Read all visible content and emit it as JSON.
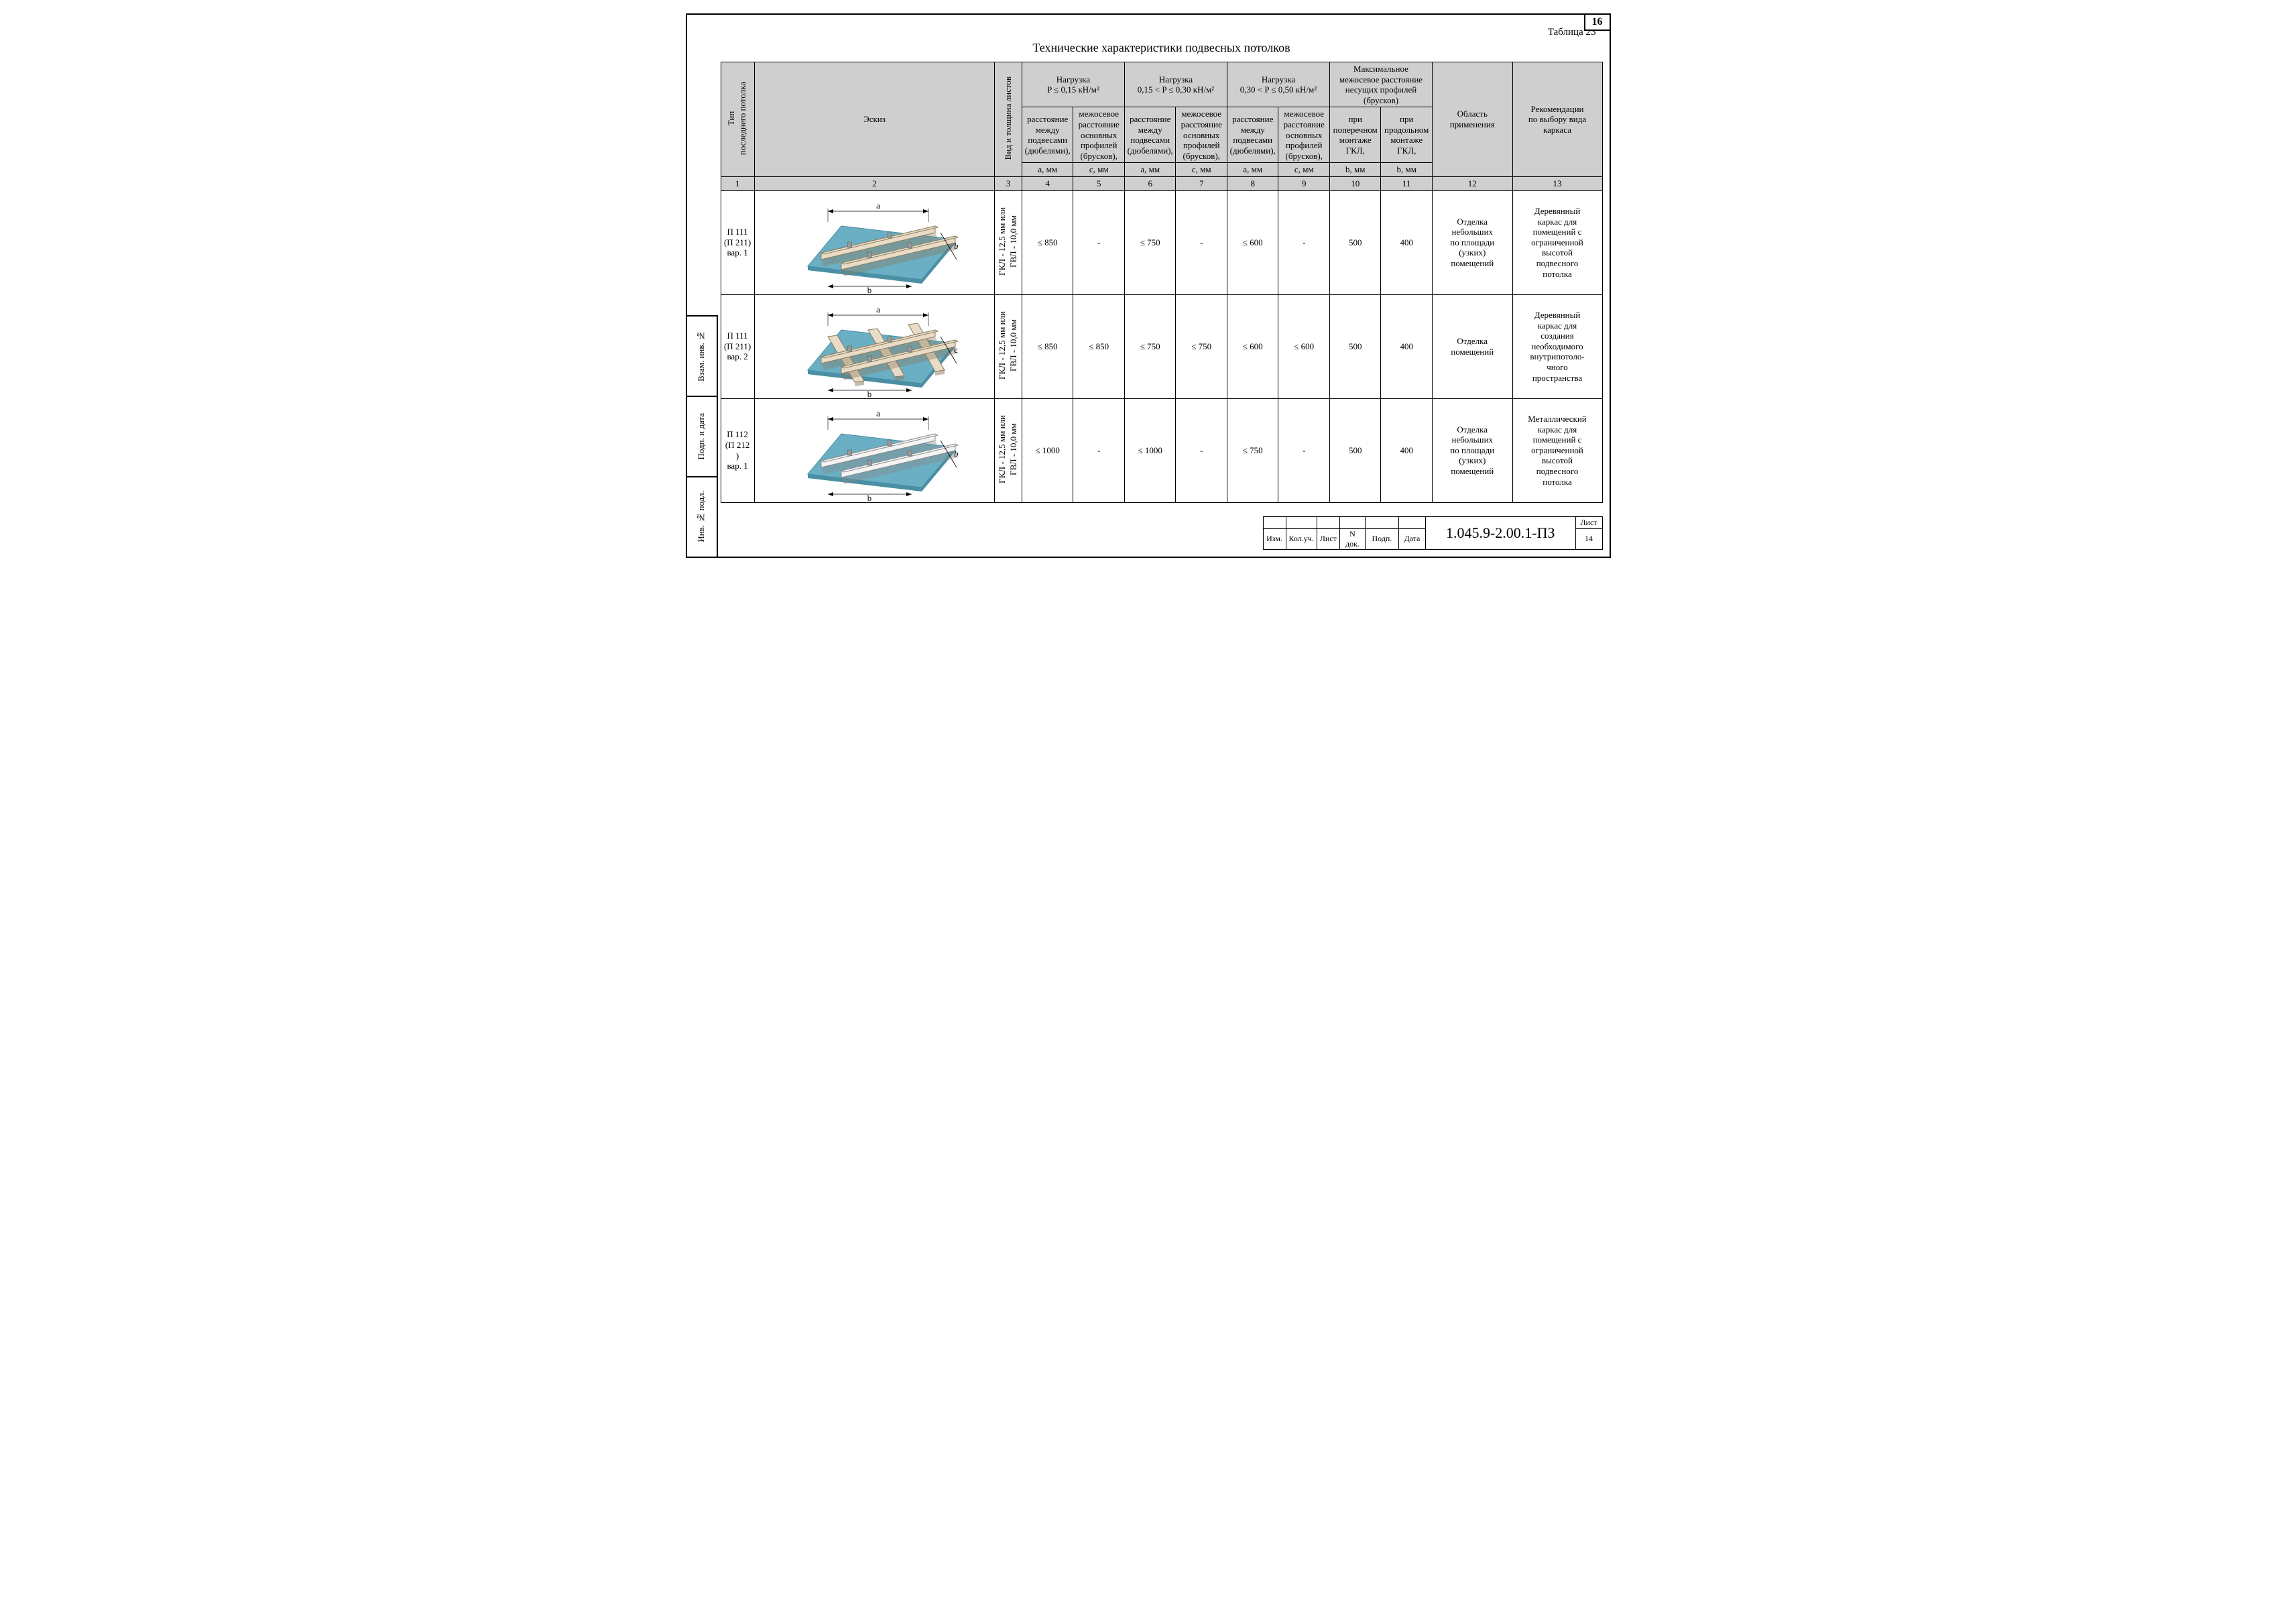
{
  "page_number_top": "16",
  "table_label": "Таблица 23",
  "title": "Технические характеристики подвесных потолков",
  "header": {
    "col1": "Тип\nпоследнего потолка",
    "col2": "Эскиз",
    "col3": "Вид и толщина листов",
    "load_groups": [
      "Нагрузка\nP ≤ 0,15 кН/м²",
      "Нагрузка\n0,15 < P ≤ 0,30 кН/м²",
      "Нагрузка\n0,30 < P ≤ 0,50 кН/м²"
    ],
    "max_group": "Максимальное\nмежосевое расстояние\nнесущих профилей\n(брусков)",
    "sub_a": "расстояние\nмежду\nподвесами\n(дюбелями),",
    "sub_c": "межосевое\nрасстояние\nосновных\nпрофилей\n(брусков),",
    "sub_b1": "при\nпоперечном\nмонтаже\nГКЛ,",
    "sub_b2": "при\nпродольном\nмонтаже\nГКЛ,",
    "unit_a": "a, мм",
    "unit_c": "c, мм",
    "unit_b": "b, мм",
    "col12": "Область\nприменения",
    "col13": "Рекомендации\nпо выбору вида\nкаркаса"
  },
  "colnums": [
    "1",
    "2",
    "3",
    "4",
    "5",
    "6",
    "7",
    "8",
    "9",
    "10",
    "11",
    "12",
    "13"
  ],
  "sheet_label": "ГКЛ - 12,5 мм или\nГВЛ - 10,0 мм",
  "rows": [
    {
      "type": "П 111\n(П 211)\nвар. 1",
      "values": [
        "≤ 850",
        "-",
        "≤ 750",
        "-",
        "≤ 600",
        "-",
        "500",
        "400"
      ],
      "area": "Отделка\nнебольших\nпо площади\n(узких)\nпомещений",
      "rec": "Деревянный\nкаркас для\nпомещений с\nограниченной\nвысотой\nподвесного\nпотолка",
      "sketch": {
        "second_layer": false,
        "beams": "wood",
        "label_b": true,
        "label_c": false
      }
    },
    {
      "type": "П 111\n(П 211)\nвар. 2",
      "values": [
        "≤ 850",
        "≤ 850",
        "≤ 750",
        "≤ 750",
        "≤ 600",
        "≤ 600",
        "500",
        "400"
      ],
      "area": "Отделка\nпомещений",
      "rec": "Деревянный\nкаркас для\nсоздания\nнеобходимого\nвнутрипотоло-\nчного\nпространства",
      "sketch": {
        "second_layer": true,
        "beams": "wood",
        "label_b": true,
        "label_c": true
      }
    },
    {
      "type": "П 112\n(П 212 )\nвар. 1",
      "values": [
        "≤ 1000",
        "-",
        "≤ 1000",
        "-",
        "≤ 750",
        "-",
        "500",
        "400"
      ],
      "area": "Отделка\nнебольших\nпо площади\n(узких)\nпомещений",
      "rec": "Металлический\nкаркас для\nпомещений с\nограниченной\nвысотой\nподвесного\nпотолка",
      "sketch": {
        "second_layer": false,
        "beams": "metal",
        "label_b": true,
        "label_c": false
      }
    }
  ],
  "side_stamp": [
    "Взам. инв. №",
    "Подп. и дата",
    "Инв. № подл."
  ],
  "title_block": {
    "small_cols": [
      "Изм.",
      "Кол.уч.",
      "Лист",
      "N док.",
      "Подп.",
      "Дата"
    ],
    "doc_code": "1.045.9-2.00.1-ПЗ",
    "sheet_word": "Лист",
    "sheet_num": "14"
  },
  "colors": {
    "panel": "#6aafc4",
    "panel_edge": "#4a8fa4",
    "wood_fill": "#e8dcc7",
    "wood_stroke": "#8a7a5e",
    "metal_fill": "#f4f4f4",
    "metal_stroke": "#888888",
    "dim_line": "#000000"
  }
}
